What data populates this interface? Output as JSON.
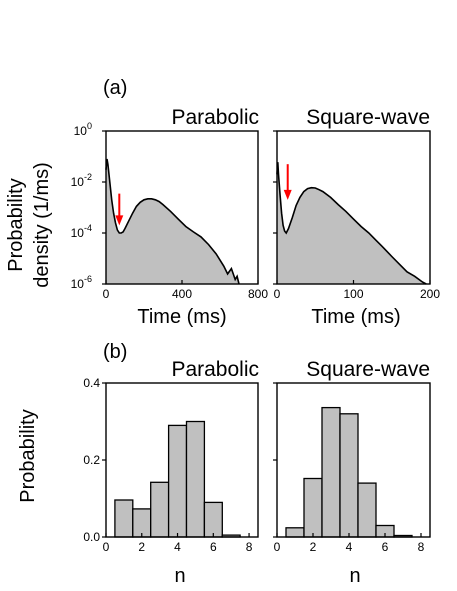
{
  "panel_labels": {
    "a": "(a)",
    "b": "(b)"
  },
  "ylabel_a": [
    "Probability",
    "density (1/ms)"
  ],
  "ylabel_b": "Probability",
  "chart_data": [
    {
      "id": "a-parabolic",
      "type": "area",
      "title": "Parabolic",
      "xlabel": "Time (ms)",
      "ylabel": "Probability density (1/ms)",
      "xlim": [
        0,
        800
      ],
      "ylim": [
        1e-06,
        1
      ],
      "yscale": "log",
      "xticks": [
        0,
        400,
        800
      ],
      "xtick_labels": [
        "0",
        "400",
        "800"
      ],
      "yticks": [
        1,
        0.01,
        0.0001,
        1e-06
      ],
      "ytick_labels": [
        [
          "10",
          "0"
        ],
        [
          "10",
          "-2"
        ],
        [
          "10",
          "-4"
        ],
        [
          "10",
          "-6"
        ]
      ],
      "series": [
        {
          "x": [
            0,
            5,
            10,
            20,
            30,
            40,
            50,
            60,
            70,
            80,
            90,
            100,
            120,
            140,
            160,
            180,
            200,
            220,
            240,
            260,
            280,
            300,
            340,
            380,
            420,
            460,
            500,
            540,
            580,
            620,
            640,
            660,
            680,
            690,
            700
          ],
          "y": [
            0.03,
            0.08,
            0.05,
            0.01,
            0.002,
            0.0006,
            0.00025,
            0.00013,
            0.0001,
            0.0001,
            0.00011,
            0.00015,
            0.0003,
            0.0006,
            0.0011,
            0.0016,
            0.002,
            0.0022,
            0.0022,
            0.002,
            0.0017,
            0.0013,
            0.0007,
            0.00035,
            0.00018,
            0.00011,
            7e-05,
            3.5e-05,
            1.5e-05,
            5e-06,
            2.5e-06,
            4e-06,
            1.5e-06,
            2e-06,
            1e-06
          ],
          "fill": "#c0c0c0",
          "stroke": "#000000"
        }
      ],
      "annotations": [
        {
          "type": "arrow",
          "x": 70,
          "y_from": 0.0035,
          "y_to": 0.0002,
          "color": "#ff0000"
        }
      ]
    },
    {
      "id": "a-square",
      "type": "area",
      "title": "Square-wave",
      "xlabel": "Time (ms)",
      "xlim": [
        0,
        200
      ],
      "ylim": [
        1e-06,
        1
      ],
      "yscale": "log",
      "xticks": [
        0,
        100,
        200
      ],
      "xtick_labels": [
        "0",
        "100",
        "200"
      ],
      "series": [
        {
          "x": [
            0,
            1,
            2,
            4,
            6,
            8,
            10,
            12,
            15,
            20,
            25,
            30,
            35,
            40,
            45,
            50,
            55,
            60,
            70,
            80,
            90,
            100,
            110,
            120,
            130,
            140,
            150,
            160,
            170,
            180,
            190,
            195
          ],
          "y": [
            0.02,
            0.06,
            0.02,
            0.003,
            0.0006,
            0.0002,
            0.00012,
            0.0001,
            0.00015,
            0.0004,
            0.0012,
            0.0025,
            0.0042,
            0.0055,
            0.006,
            0.0058,
            0.005,
            0.0042,
            0.0025,
            0.0013,
            0.0007,
            0.00035,
            0.00018,
            0.0001,
            5e-05,
            2.5e-05,
            1.2e-05,
            6e-06,
            3e-06,
            2e-06,
            1.2e-06,
            1e-06
          ],
          "fill": "#c0c0c0",
          "stroke": "#000000"
        }
      ],
      "annotations": [
        {
          "type": "arrow",
          "x": 14,
          "y_from": 0.05,
          "y_to": 0.002,
          "color": "#ff0000"
        }
      ]
    },
    {
      "id": "b-parabolic",
      "type": "bar",
      "title": "Parabolic",
      "xlabel": "n",
      "ylabel": "Probability",
      "xlim": [
        0,
        8.5
      ],
      "ylim": [
        0,
        0.4
      ],
      "xticks": [
        0,
        2,
        4,
        6,
        8
      ],
      "xtick_labels": [
        "0",
        "2",
        "4",
        "6",
        "8"
      ],
      "yticks": [
        0.0,
        0.2,
        0.4
      ],
      "ytick_labels": [
        "0.0",
        "0.2",
        "0.4"
      ],
      "categories": [
        1,
        2,
        3,
        4,
        5,
        6,
        7
      ],
      "values": [
        0.096,
        0.073,
        0.142,
        0.29,
        0.3,
        0.09,
        0.005
      ],
      "bar_color": "#c0c0c0"
    },
    {
      "id": "b-square",
      "type": "bar",
      "title": "Square-wave",
      "xlabel": "n",
      "xlim": [
        0,
        8.5
      ],
      "ylim": [
        0,
        0.4
      ],
      "xticks": [
        0,
        2,
        4,
        6,
        8
      ],
      "xtick_labels": [
        "0",
        "2",
        "4",
        "6",
        "8"
      ],
      "categories": [
        1,
        2,
        3,
        4,
        5,
        6,
        7
      ],
      "values": [
        0.024,
        0.152,
        0.336,
        0.32,
        0.14,
        0.03,
        0.004
      ],
      "bar_color": "#c0c0c0"
    }
  ]
}
